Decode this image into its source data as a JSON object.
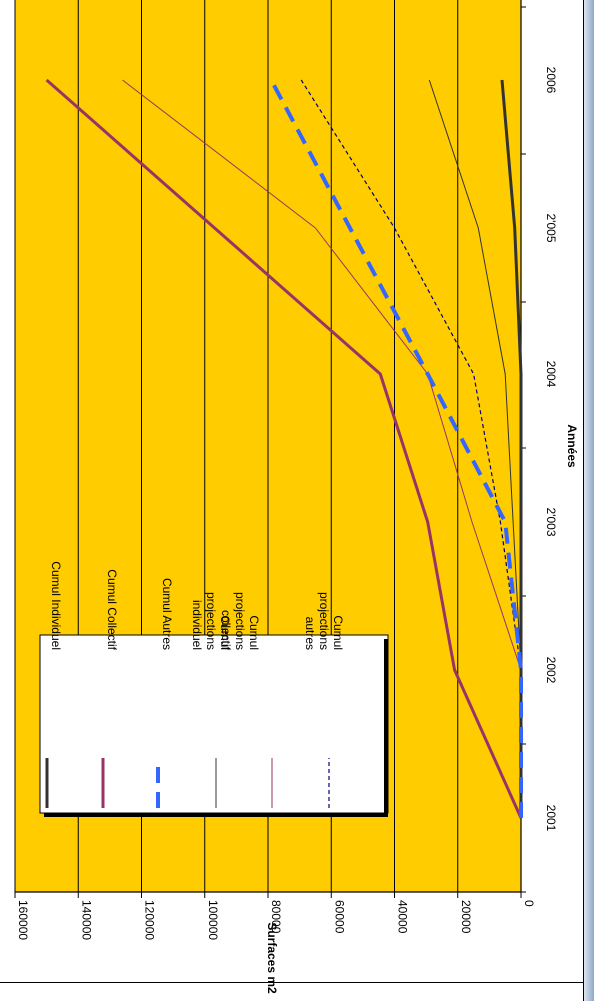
{
  "colors": {
    "plot_background": "#FFCC00",
    "gridline": "#000000",
    "sidebar_gradient_dark": "#8DA6C9",
    "sidebar_gradient_light": "#E6ECF4"
  },
  "chart_data": {
    "type": "line",
    "orientation": "rotated-90-clockwise",
    "xlabel": "Années",
    "ylabel": "Surfaces m2",
    "ylim": [
      0,
      160000
    ],
    "yticks": [
      0,
      20000,
      40000,
      60000,
      80000,
      100000,
      120000,
      140000,
      160000
    ],
    "ytick_labels": [
      "0",
      "20000",
      "40000",
      "60000",
      "80000",
      "100000",
      "120000",
      "140000",
      "160000"
    ],
    "xlim": [
      2001,
      2006.5
    ],
    "xticks": [
      2001,
      2002,
      2003,
      2004,
      2005,
      2006
    ],
    "xtick_labels": [
      "2001",
      "2002",
      "2'003",
      "2004",
      "2'005",
      "2006"
    ],
    "grid": true,
    "legend_position": "top-left",
    "series": [
      {
        "name": "Cumul Individuel",
        "style": "thick-solid",
        "color": "#333333",
        "x": [
          2001,
          2002,
          2003,
          2004,
          2005,
          2006
        ],
        "y": [
          0,
          0,
          0,
          0,
          2000,
          6000
        ]
      },
      {
        "name": "Cumul Collectif",
        "style": "thick-solid",
        "color": "#993366",
        "x": [
          2001,
          2002,
          2003,
          2004,
          2006
        ],
        "y": [
          0,
          21000,
          29500,
          44500,
          150000
        ]
      },
      {
        "name": "Cumul Autres",
        "style": "thick-dashed",
        "color": "#3366FF",
        "x": [
          2001,
          2002,
          2003,
          2004,
          2006
        ],
        "y": [
          0,
          0,
          5000,
          29500,
          79000
        ]
      },
      {
        "name": "Cumul projections individuel",
        "style": "thin-solid",
        "color": "#333333",
        "x": [
          2002,
          2004,
          2005,
          2006
        ],
        "y": [
          0,
          5000,
          13500,
          29000
        ]
      },
      {
        "name": "Cumul projections collectif",
        "style": "thin-solid",
        "color": "#993366",
        "x": [
          2002,
          2003,
          2004,
          2005,
          2006
        ],
        "y": [
          0,
          15500,
          29500,
          65000,
          126000
        ]
      },
      {
        "name": "Cumul projections autres",
        "style": "thin-dashed",
        "color": "#000080",
        "x": [
          2002,
          2003,
          2004,
          2005,
          2006
        ],
        "y": [
          0,
          6500,
          15000,
          40000,
          69500
        ]
      }
    ]
  }
}
